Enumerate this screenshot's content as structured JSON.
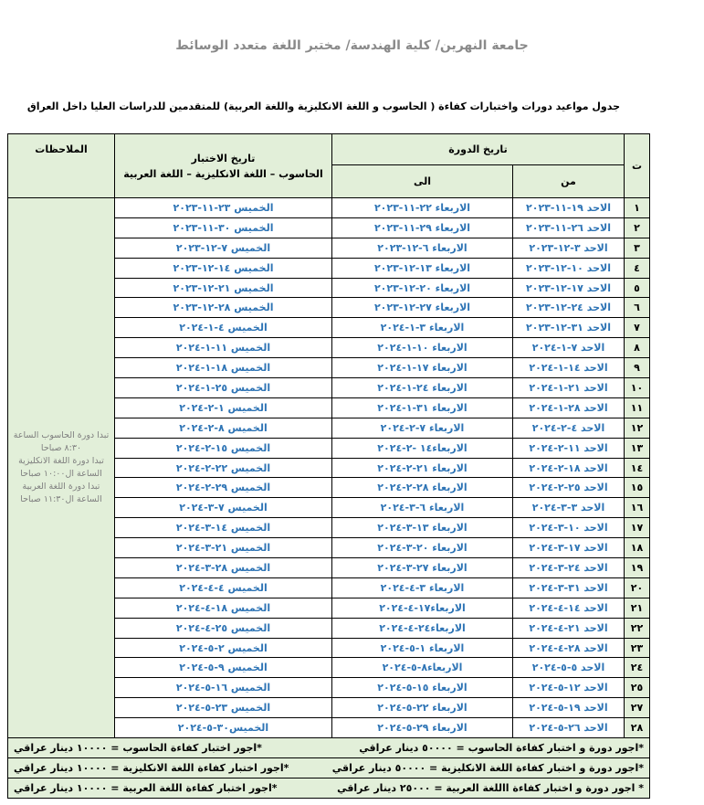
{
  "header": {
    "title": "جامعة النهرين/ كلية الهندسة/ مختبر اللغة متعدد الوسائط",
    "subtitle": "جدول مواعيد دورات واختبارات كفاءة ( الحاسوب و اللغة الانكليزية واللغة العربية) للمتقدمين للدراسات العليا داخل العراق"
  },
  "table": {
    "columns": {
      "number": "ت",
      "course_date": "تاريخ الدورة",
      "from": "من",
      "to": "الى",
      "exam_date": "تاريخ الاختبار",
      "exam_subjects": "الحاسوب – اللغة الانكليزية – اللغة العربية",
      "notes": "الملاحظات"
    },
    "rows": [
      [
        "١",
        "الاحد ١٩-١١-٢٠٢٣",
        "الاربعاء ٢٢-١١-٢٠٢٣",
        "الخميس ٢٣-١١-٢٠٢٣"
      ],
      [
        "٢",
        "الاحد ٢٦-١١-٢٠٢٣",
        "الاربعاء ٢٩-١١-٢٠٢٣",
        "الخميس ٣٠-١١-٢٠٢٣"
      ],
      [
        "٣",
        "الاحد ٣-١٢-٢٠٢٣",
        "الاربعاء ٦-١٢-٢٠٢٣",
        "الخميس ٧-١٢-٢٠٢٣"
      ],
      [
        "٤",
        "الاحد ١٠-١٢-٢٠٢٣",
        "الاربعاء ١٣-١٢-٢٠٢٣",
        "الخميس ١٤-١٢-٢٠٢٣"
      ],
      [
        "٥",
        "الاحد ١٧-١٢-٢٠٢٣",
        "الاربعاء ٢٠-١٢-٢٠٢٣",
        "الخميس ٢١-١٢-٢٠٢٣"
      ],
      [
        "٦",
        "الاحد ٢٤-١٢-٢٠٢٣",
        "الاربعاء ٢٧-١٢-٢٠٢٣",
        "الخميس ٢٨-١٢-٢٠٢٣"
      ],
      [
        "٧",
        "الاحد ٣١-١٢-٢٠٢٣",
        "الاربعاء ٣-١-٢٠٢٤",
        "الخميس ٤-١-٢٠٢٤"
      ],
      [
        "٨",
        "الاحد ٧-١-٢٠٢٤",
        "الاربعاء ١٠-١-٢٠٢٤",
        "الخميس ١١-١-٢٠٢٤"
      ],
      [
        "٩",
        "الاحد ١٤-١-٢٠٢٤",
        "الاربعاء ١٧-١-٢٠٢٤",
        "الخميس ١٨-١-٢٠٢٤"
      ],
      [
        "١٠",
        "الاحد ٢١-١-٢٠٢٤",
        "الاربعاء ٢٤-١-٢٠٢٤",
        "الخميس ٢٥-١-٢٠٢٤"
      ],
      [
        "١١",
        "الاحد ٢٨-١-٢٠٢٤",
        "الاربعاء ٣١-١-٢٠٢٤",
        "الخميس ١-٢-٢٠٢٤"
      ],
      [
        "١٢",
        "الاحد ٤-٢-٢٠٢٤",
        "الاربعاء ٧-٢-٢٠٢٤",
        "الخميس ٨-٢-٢٠٢٤"
      ],
      [
        "١٣",
        "الاحد ١١-٢-٢٠٢٤",
        "الاربعاء١٤ -٢-٢٠٢٤",
        "الخميس ١٥-٢-٢٠٢٤"
      ],
      [
        "١٤",
        "الاحد ١٨-٢-٢٠٢٤",
        "الاربعاء ٢١-٢-٢٠٢٤",
        "الخميس ٢٢-٢-٢٠٢٤"
      ],
      [
        "١٥",
        "الاحد ٢٥-٢-٢٠٢٤",
        "الاربعاء ٢٨-٢-٢٠٢٤",
        "الخميس ٢٩-٢-٢٠٢٤"
      ],
      [
        "١٦",
        "الاحد ٣-٣-٢٠٢٤",
        "الاربعاء ٦-٣-٢٠٢٤",
        "الخميس ٧-٣-٢٠٢٤"
      ],
      [
        "١٧",
        "الاحد ١٠-٣-٢٠٢٤",
        "الاربعاء ١٣-٣-٢٠٢٤",
        "الخميس ١٤-٣-٢٠٢٤"
      ],
      [
        "١٨",
        "الاحد ١٧-٣-٢٠٢٤",
        "الاربعاء ٢٠-٣-٢٠٢٤",
        "الخميس ٢١-٣-٢٠٢٤"
      ],
      [
        "١٩",
        "الاحد ٢٤-٣-٢٠٢٤",
        "الاربعاء ٢٧-٣-٢٠٢٤",
        "الخميس ٢٨-٣-٢٠٢٤"
      ],
      [
        "٢٠",
        "الاحد ٣١-٣-٢٠٢٤",
        "الاربعاء ٣-٤-٢٠٢٤",
        "الخميس ٤-٤-٢٠٢٤"
      ],
      [
        "٢١",
        "الاحد ١٤-٤-٢٠٢٤",
        "الاربعاء١٧-٤-٢٠٢٤",
        "الخميس ١٨-٤-٢٠٢٤"
      ],
      [
        "٢٢",
        "الاحد ٢١-٤-٢٠٢٤",
        "الاربعاء٢٤-٤-٢٠٢٤",
        "الخميس ٢٥-٤-٢٠٢٤"
      ],
      [
        "٢٣",
        "الاحد ٢٨-٤-٢٠٢٤",
        "الاربعاء ١-٥-٢٠٢٤",
        "الخميس ٢-٥-٢٠٢٤"
      ],
      [
        "٢٤",
        "الاحد ٥-٥-٢٠٢٤",
        "الاربعاء٨-٥-٢٠٢٤",
        "الخميس ٩-٥-٢٠٢٤"
      ],
      [
        "٢٥",
        "الاحد ١٢-٥-٢٠٢٤",
        "الاربعاء ١٥-٥-٢٠٢٤",
        "الخميس ١٦-٥-٢٠٢٤"
      ],
      [
        "٢٧",
        "الاحد ١٩-٥-٢٠٢٤",
        "الاربعاء ٢٢-٥-٢٠٢٤",
        "الخميس ٢٣-٥-٢٠٢٤"
      ],
      [
        "٢٨",
        "الاحد ٢٦-٥-٢٠٢٤",
        "الاربعاء ٢٩-٥-٢٠٢٤",
        "الخميس٣٠-٥-٢٠٢٤"
      ]
    ],
    "notes": [
      "تبدا دورة الحاسوب الساعة ٨:٣٠ صباحا",
      "تبدا دورة اللغة الانكليزية الساعة ال١٠:٠٠ صباحا",
      "تبدا دورة اللغة العربية الساعة ال١١:٣٠ صباحا"
    ],
    "fees": [
      [
        "*اجور دورة و اختبار كفاءة الحاسوب = ٥٠٠٠٠ دينار عراقي",
        "*اجور اختبار كفاءة الحاسوب = ١٠٠٠٠ دينار عراقي"
      ],
      [
        "*اجور دورة و اختبار كفاءة اللغة الانكليزية = ٥٠٠٠٠ دينار عراقي",
        "*اجور اختبار كفاءة اللغة الانكليزية = ١٠٠٠٠ دينار عراقي"
      ],
      [
        "* اجور دورة و اختبار كفاءة االلغة العربية = ٢٥٠٠٠ دينار عراقي",
        "*اجور اختبار كفاءة اللغة العربية = ١٠٠٠٠ دينار عراقي"
      ]
    ]
  }
}
